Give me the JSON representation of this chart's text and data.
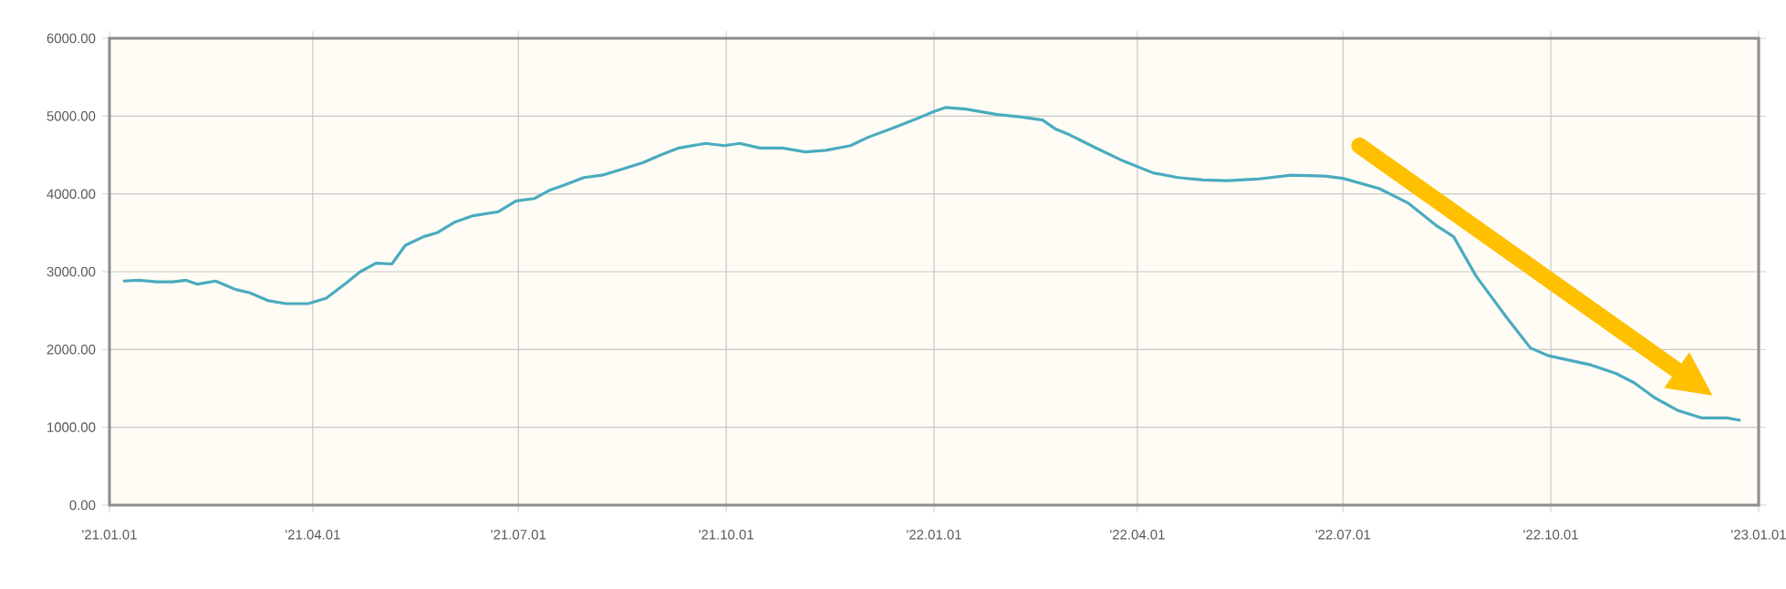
{
  "chart_data": {
    "type": "line",
    "color": "#4aabbf",
    "grid": true,
    "x": [
      "2021-01-07",
      "2021-01-14",
      "2021-01-22",
      "2021-01-29",
      "2021-02-04",
      "2021-02-09",
      "2021-02-17",
      "2021-02-26",
      "2021-03-04",
      "2021-03-12",
      "2021-03-20",
      "2021-03-30",
      "2021-04-07",
      "2021-04-16",
      "2021-04-22",
      "2021-04-29",
      "2021-05-06",
      "2021-05-12",
      "2021-05-20",
      "2021-05-26",
      "2021-06-03",
      "2021-06-11",
      "2021-06-22",
      "2021-06-30",
      "2021-07-08",
      "2021-07-15",
      "2021-07-21",
      "2021-07-30",
      "2021-08-07",
      "2021-08-15",
      "2021-08-25",
      "2021-09-02",
      "2021-09-10",
      "2021-09-22",
      "2021-09-30",
      "2021-10-07",
      "2021-10-16",
      "2021-10-26",
      "2021-11-05",
      "2021-11-14",
      "2021-11-25",
      "2021-12-03",
      "2021-12-14",
      "2021-12-23",
      "2022-01-01",
      "2022-01-06",
      "2022-01-15",
      "2022-01-29",
      "2022-02-08",
      "2022-02-18",
      "2022-02-24",
      "2022-03-02",
      "2022-03-13",
      "2022-03-26",
      "2022-04-08",
      "2022-04-19",
      "2022-04-30",
      "2022-05-11",
      "2022-05-24",
      "2022-06-08",
      "2022-06-23",
      "2022-07-01",
      "2022-07-17",
      "2022-07-30",
      "2022-08-11",
      "2022-08-19",
      "2022-08-29",
      "2022-09-12",
      "2022-09-22",
      "2022-09-30",
      "2022-10-19",
      "2022-10-30",
      "2022-11-07",
      "2022-11-16",
      "2022-11-26",
      "2022-12-07",
      "2022-12-18",
      "2022-12-24"
    ],
    "values": [
      2880,
      2890,
      2870,
      2870,
      2890,
      2840,
      2880,
      2770,
      2730,
      2630,
      2590,
      2590,
      2660,
      2860,
      3000,
      3110,
      3100,
      3340,
      3450,
      3500,
      3640,
      3720,
      3770,
      3910,
      3940,
      4050,
      4110,
      4210,
      4240,
      4310,
      4400,
      4500,
      4590,
      4650,
      4620,
      4650,
      4590,
      4590,
      4540,
      4560,
      4620,
      4730,
      4850,
      4950,
      5060,
      5110,
      5090,
      5020,
      4990,
      4950,
      4830,
      4760,
      4600,
      4420,
      4270,
      4210,
      4180,
      4170,
      4190,
      4240,
      4230,
      4200,
      4070,
      3880,
      3600,
      3450,
      2940,
      2390,
      2020,
      1920,
      1800,
      1690,
      1570,
      1380,
      1220,
      1120,
      1120,
      1090
    ],
    "xlim": [
      "2021-01-01",
      "2023-01-01"
    ],
    "xticks": [
      {
        "value": "2021-01-01",
        "label": "'21.01.01"
      },
      {
        "value": "2021-04-01",
        "label": "'21.04.01"
      },
      {
        "value": "2021-07-01",
        "label": "'21.07.01"
      },
      {
        "value": "2021-10-01",
        "label": "'21.10.01"
      },
      {
        "value": "2022-01-01",
        "label": "'22.01.01"
      },
      {
        "value": "2022-04-01",
        "label": "'22.04.01"
      },
      {
        "value": "2022-07-01",
        "label": "'22.07.01"
      },
      {
        "value": "2022-10-01",
        "label": "'22.10.01"
      },
      {
        "value": "2023-01-01",
        "label": "'23.01.01"
      }
    ],
    "ylim": [
      0,
      6000
    ],
    "yticks": [
      {
        "value": 0,
        "label": "0.00"
      },
      {
        "value": 1000,
        "label": "1000.00"
      },
      {
        "value": 2000,
        "label": "2000.00"
      },
      {
        "value": 3000,
        "label": "3000.00"
      },
      {
        "value": 4000,
        "label": "4000.00"
      },
      {
        "value": 5000,
        "label": "5000.00"
      },
      {
        "value": 6000,
        "label": "6000.00"
      }
    ]
  }
}
